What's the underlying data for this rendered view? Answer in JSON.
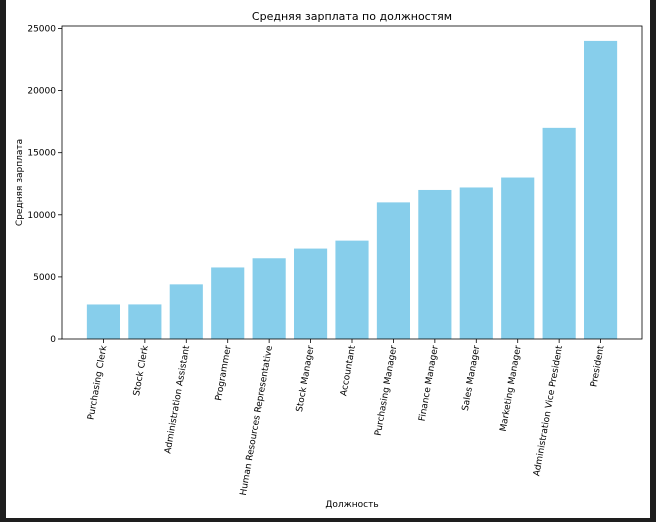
{
  "chart_data": {
    "type": "bar",
    "title": "Средняя зарплата по должностям",
    "xlabel": "Должность",
    "ylabel": "Средняя зарплата",
    "categories": [
      "Purchasing Clerk",
      "Stock Clerk",
      "Administration Assistant",
      "Programmer",
      "Human Resources Representative",
      "Stock Manager",
      "Accountant",
      "Purchasing Manager",
      "Finance Manager",
      "Sales Manager",
      "Marketing Manager",
      "Administration Vice President",
      "President"
    ],
    "values": [
      2780,
      2785,
      4400,
      5760,
      6500,
      7280,
      7920,
      11000,
      12000,
      12200,
      13000,
      17000,
      24000
    ],
    "ylim": [
      0,
      25200
    ],
    "yticks": [
      0,
      5000,
      10000,
      15000,
      20000,
      25000
    ],
    "bar_color": "#87ceeb",
    "grid": false,
    "legend": "none"
  }
}
